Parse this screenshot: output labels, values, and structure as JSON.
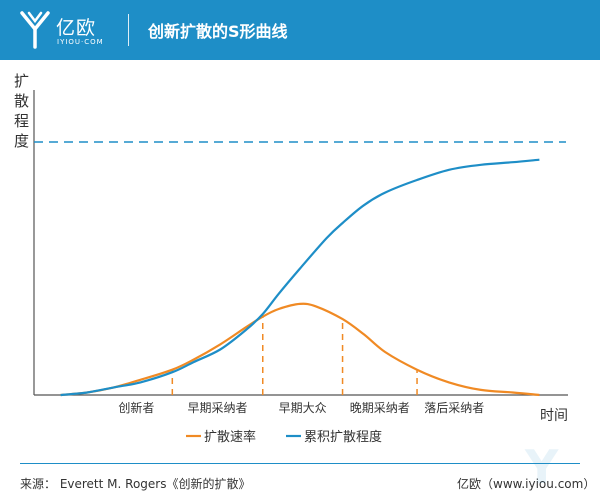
{
  "header": {
    "logo_text": "亿欧",
    "logo_subtext": "IYIOU·COM",
    "title": "创新扩散的S形曲线"
  },
  "footer": {
    "source": "来源：  Everett  M. Rogers《创新的扩散》",
    "site": "亿欧（www.iyiou.com）"
  },
  "colors": {
    "brand": "#1e8ec7",
    "diffusion_rate": "#f08a24",
    "cumulative": "#1e8ec7"
  },
  "chart_data": {
    "type": "line",
    "ylabel": "扩散程度",
    "xlabel": "时间",
    "ylim": [
      0,
      1
    ],
    "xlim": [
      0,
      1
    ],
    "axis_ticks": false,
    "grid": false,
    "reference_line": {
      "y": 1,
      "style": "dashed"
    },
    "legend_position": "bottom",
    "categories": [
      "创新者",
      "早期采纳者",
      "早期大众",
      "晚期采纳者",
      "落后采纳者"
    ],
    "dividers_x": [
      0.26,
      0.43,
      0.58,
      0.72
    ],
    "series": [
      {
        "name": "扩散速率",
        "color": "#f08a24",
        "x": [
          0.05,
          0.1,
          0.15,
          0.2,
          0.26,
          0.3,
          0.35,
          0.4,
          0.43,
          0.46,
          0.5,
          0.53,
          0.58,
          0.62,
          0.66,
          0.72,
          0.78,
          0.84,
          0.9,
          0.95
        ],
        "y": [
          0.0,
          0.01,
          0.03,
          0.06,
          0.1,
          0.14,
          0.2,
          0.27,
          0.31,
          0.34,
          0.36,
          0.35,
          0.3,
          0.24,
          0.17,
          0.1,
          0.05,
          0.02,
          0.01,
          0.0
        ]
      },
      {
        "name": "累积扩散程度",
        "color": "#1e8ec7",
        "x": [
          0.05,
          0.1,
          0.15,
          0.2,
          0.26,
          0.3,
          0.35,
          0.4,
          0.43,
          0.46,
          0.5,
          0.55,
          0.58,
          0.62,
          0.66,
          0.72,
          0.78,
          0.84,
          0.9,
          0.95
        ],
        "y": [
          0.0,
          0.01,
          0.03,
          0.05,
          0.09,
          0.13,
          0.18,
          0.26,
          0.32,
          0.4,
          0.5,
          0.62,
          0.68,
          0.75,
          0.8,
          0.85,
          0.89,
          0.91,
          0.92,
          0.93
        ]
      }
    ]
  }
}
